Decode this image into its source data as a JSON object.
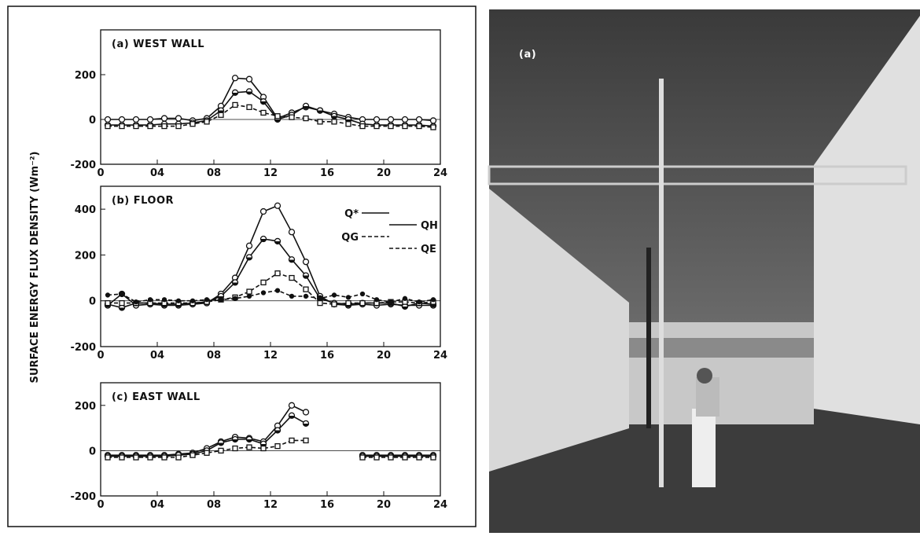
{
  "figure": {
    "y_label": "SURFACE ENERGY FLUX DENSITY (Wm⁻²)"
  },
  "photo": {
    "label": "(a)"
  },
  "chart_data": [
    {
      "type": "line",
      "title": "(a) WEST WALL",
      "x": [
        0.5,
        1.5,
        2.5,
        3.5,
        4.5,
        5.5,
        6.5,
        7.5,
        8.5,
        9.5,
        10.5,
        11.5,
        12.5,
        13.5,
        14.5,
        15.5,
        16.5,
        17.5,
        18.5,
        19.5,
        20.5,
        21.5,
        22.5,
        23.5
      ],
      "xlim": [
        0,
        24
      ],
      "xticks": [
        0,
        {
          "value": 4,
          "label": "04"
        },
        {
          "value": 8,
          "label": "08"
        },
        12,
        16,
        20,
        24
      ],
      "ylim": [
        -200,
        400
      ],
      "yticks": [
        -200,
        0,
        200
      ],
      "series": [
        {
          "color": "#111",
          "marker": "circle-open",
          "dash": false,
          "values": [
            0,
            0,
            0,
            0,
            5,
            5,
            -5,
            5,
            60,
            185,
            180,
            100,
            5,
            30,
            55,
            40,
            25,
            10,
            0,
            0,
            0,
            0,
            0,
            -5
          ]
        },
        {
          "color": "#111",
          "marker": "circle-half",
          "dash": false,
          "values": [
            -25,
            -25,
            -25,
            -25,
            -20,
            -20,
            -15,
            -5,
            40,
            120,
            125,
            80,
            0,
            20,
            60,
            40,
            15,
            0,
            -20,
            -25,
            -25,
            -25,
            -25,
            -30
          ]
        },
        {
          "color": "#111",
          "marker": "square-open",
          "dash": true,
          "values": [
            -30,
            -30,
            -30,
            -30,
            -30,
            -30,
            -20,
            -10,
            20,
            65,
            55,
            30,
            15,
            10,
            5,
            -10,
            -10,
            -20,
            -30,
            -30,
            -30,
            -30,
            -30,
            -35
          ]
        }
      ]
    },
    {
      "type": "line",
      "title": "(b) FLOOR",
      "x": [
        0.5,
        1.5,
        2.5,
        3.5,
        4.5,
        5.5,
        6.5,
        7.5,
        8.5,
        9.5,
        10.5,
        11.5,
        12.5,
        13.5,
        14.5,
        15.5,
        16.5,
        17.5,
        18.5,
        19.5,
        20.5,
        21.5,
        22.5,
        23.5
      ],
      "xlim": [
        0,
        24
      ],
      "xticks": [
        0,
        {
          "value": 4,
          "label": "04"
        },
        {
          "value": 8,
          "label": "08"
        },
        12,
        16,
        20,
        24
      ],
      "ylim": [
        -200,
        500
      ],
      "yticks": [
        -200,
        0,
        200,
        400
      ],
      "legend": "upper right",
      "series": [
        {
          "name": "Q*",
          "color": "#111",
          "marker": "circle-open",
          "dash": false,
          "values": [
            -20,
            30,
            -20,
            -15,
            -20,
            -20,
            -15,
            -10,
            30,
            100,
            240,
            390,
            415,
            300,
            170,
            20,
            -15,
            -20,
            -15,
            -20,
            -15,
            -20,
            -20,
            -20
          ]
        },
        {
          "name": "QH",
          "color": "#111",
          "marker": "circle-half",
          "dash": false,
          "values": [
            -15,
            -30,
            -10,
            -10,
            -15,
            -15,
            -10,
            -5,
            20,
            80,
            190,
            270,
            260,
            180,
            110,
            10,
            -10,
            -15,
            -10,
            -10,
            -10,
            -25,
            -10,
            -15
          ]
        },
        {
          "name": "QG",
          "color": "#111",
          "marker": "square-open",
          "dash": true,
          "values": [
            -10,
            -10,
            -10,
            -10,
            -10,
            -10,
            -10,
            -5,
            5,
            15,
            40,
            80,
            120,
            100,
            50,
            -10,
            -15,
            -10,
            -10,
            -10,
            -5,
            -5,
            -10,
            -5
          ]
        },
        {
          "name": "QE",
          "color": "#111",
          "marker": "dot",
          "dash": true,
          "values": [
            25,
            30,
            -5,
            5,
            5,
            0,
            0,
            5,
            5,
            10,
            20,
            35,
            45,
            20,
            20,
            10,
            25,
            15,
            30,
            5,
            -5,
            10,
            -5,
            5
          ]
        }
      ]
    },
    {
      "type": "line",
      "title": "(c) EAST WALL",
      "x": [
        0.5,
        1.5,
        2.5,
        3.5,
        4.5,
        5.5,
        6.5,
        7.5,
        8.5,
        9.5,
        10.5,
        11.5,
        12.5,
        13.5,
        14.5,
        15.5,
        16.5,
        17.5,
        18.5,
        19.5,
        20.5,
        21.5,
        22.5,
        23.5
      ],
      "xlim": [
        0,
        24
      ],
      "xticks": [
        0,
        {
          "value": 4,
          "label": "04"
        },
        {
          "value": 8,
          "label": "08"
        },
        12,
        16,
        20,
        24
      ],
      "ylim": [
        -200,
        300
      ],
      "yticks": [
        -200,
        0,
        200
      ],
      "series": [
        {
          "color": "#111",
          "marker": "circle-open",
          "dash": false,
          "values": [
            -20,
            -20,
            -20,
            -20,
            -20,
            -15,
            -10,
            10,
            40,
            60,
            55,
            40,
            110,
            200,
            170,
            null,
            null,
            null,
            -20,
            -20,
            -20,
            -20,
            -20,
            -20
          ]
        },
        {
          "color": "#111",
          "marker": "circle-half",
          "dash": false,
          "values": [
            -25,
            -25,
            -25,
            -25,
            -25,
            -20,
            -15,
            0,
            35,
            50,
            50,
            30,
            90,
            155,
            120,
            null,
            null,
            null,
            -25,
            -25,
            -25,
            -25,
            -25,
            -25
          ]
        },
        {
          "color": "#111",
          "marker": "square-open",
          "dash": true,
          "values": [
            -30,
            -30,
            -30,
            -30,
            -30,
            -30,
            -20,
            -10,
            0,
            10,
            15,
            10,
            20,
            45,
            45,
            null,
            null,
            null,
            -30,
            -30,
            -30,
            -30,
            -30,
            -30
          ]
        }
      ]
    }
  ]
}
